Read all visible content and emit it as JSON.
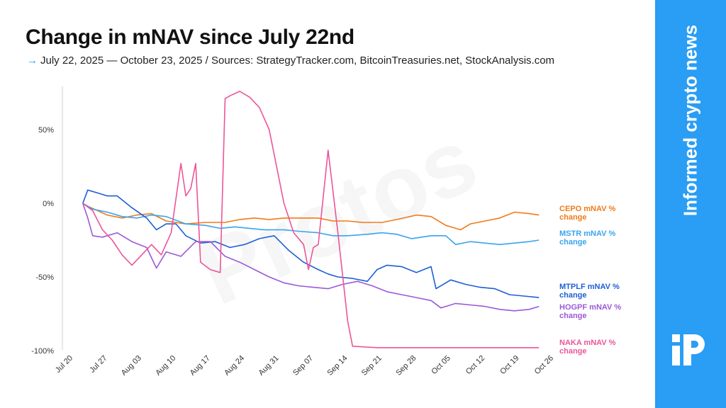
{
  "header": {
    "title": "Change in mNAV since July 22nd",
    "arrow": "→",
    "subtitle": "July 22, 2025 — October 23, 2025 / Sources: StrategyTracker.com, BitcoinTreasuries.net, StockAnalysis.com"
  },
  "brand": {
    "tagline": "Informed crypto news",
    "logo_icon": "protos-logo-icon",
    "watermark": "Protos",
    "accent": "#2a9df4"
  },
  "chart_data": {
    "type": "line",
    "title": "Change in mNAV since July 22nd",
    "xlabel": "",
    "ylabel": "",
    "x_ticks": [
      "Jul 20",
      "Jul 27",
      "Aug 03",
      "Aug 10",
      "Aug 17",
      "Aug 24",
      "Aug 31",
      "Sep 07",
      "Sep 14",
      "Sep 21",
      "Sep 28",
      "Oct 05",
      "Oct 12",
      "Oct 19",
      "Oct 26"
    ],
    "y_ticks": [
      {
        "value": 50,
        "label": "50%"
      },
      {
        "value": 0,
        "label": "0%"
      },
      {
        "value": -50,
        "label": "-50%"
      },
      {
        "value": -100,
        "label": "-100%"
      }
    ],
    "xlim": [
      "2025-07-20",
      "2025-10-26"
    ],
    "ylim": [
      -100,
      80
    ],
    "grid": false,
    "legend": "inline-right",
    "series": [
      {
        "name": "CEPO mNAV % change",
        "color": "#f07a19",
        "points": [
          [
            "2025-07-22",
            0
          ],
          [
            "2025-07-23",
            -2
          ],
          [
            "2025-07-25",
            -5
          ],
          [
            "2025-07-27",
            -8
          ],
          [
            "2025-07-30",
            -10
          ],
          [
            "2025-08-02",
            -8
          ],
          [
            "2025-08-05",
            -7
          ],
          [
            "2025-08-08",
            -12
          ],
          [
            "2025-08-12",
            -14
          ],
          [
            "2025-08-16",
            -13
          ],
          [
            "2025-08-20",
            -13
          ],
          [
            "2025-08-23",
            -11
          ],
          [
            "2025-08-26",
            -10
          ],
          [
            "2025-08-29",
            -11
          ],
          [
            "2025-09-01",
            -10
          ],
          [
            "2025-09-04",
            -10
          ],
          [
            "2025-09-08",
            -10
          ],
          [
            "2025-09-11",
            -12
          ],
          [
            "2025-09-14",
            -12
          ],
          [
            "2025-09-17",
            -13
          ],
          [
            "2025-09-21",
            -13
          ],
          [
            "2025-09-24",
            -11
          ],
          [
            "2025-09-28",
            -8
          ],
          [
            "2025-10-01",
            -9
          ],
          [
            "2025-10-04",
            -15
          ],
          [
            "2025-10-07",
            -18
          ],
          [
            "2025-10-09",
            -14
          ],
          [
            "2025-10-12",
            -12
          ],
          [
            "2025-10-15",
            -10
          ],
          [
            "2025-10-18",
            -6
          ],
          [
            "2025-10-21",
            -7
          ],
          [
            "2025-10-23",
            -8
          ]
        ]
      },
      {
        "name": "MSTR mNAV % change",
        "color": "#38a4ef",
        "points": [
          [
            "2025-07-22",
            0
          ],
          [
            "2025-07-24",
            -4
          ],
          [
            "2025-07-27",
            -6
          ],
          [
            "2025-07-30",
            -9
          ],
          [
            "2025-08-02",
            -10
          ],
          [
            "2025-08-05",
            -8
          ],
          [
            "2025-08-08",
            -9
          ],
          [
            "2025-08-12",
            -14
          ],
          [
            "2025-08-16",
            -15
          ],
          [
            "2025-08-19",
            -17
          ],
          [
            "2025-08-22",
            -16
          ],
          [
            "2025-08-25",
            -17
          ],
          [
            "2025-08-28",
            -18
          ],
          [
            "2025-09-01",
            -18
          ],
          [
            "2025-09-04",
            -19
          ],
          [
            "2025-09-08",
            -20
          ],
          [
            "2025-09-11",
            -22
          ],
          [
            "2025-09-14",
            -22
          ],
          [
            "2025-09-18",
            -21
          ],
          [
            "2025-09-21",
            -20
          ],
          [
            "2025-09-24",
            -21
          ],
          [
            "2025-09-27",
            -24
          ],
          [
            "2025-10-01",
            -22
          ],
          [
            "2025-10-04",
            -22
          ],
          [
            "2025-10-06",
            -28
          ],
          [
            "2025-10-09",
            -26
          ],
          [
            "2025-10-12",
            -27
          ],
          [
            "2025-10-15",
            -28
          ],
          [
            "2025-10-18",
            -27
          ],
          [
            "2025-10-21",
            -26
          ],
          [
            "2025-10-23",
            -25
          ]
        ]
      },
      {
        "name": "MTPLF mNAV % change",
        "color": "#1d5fd4",
        "points": [
          [
            "2025-07-22",
            0
          ],
          [
            "2025-07-23",
            9
          ],
          [
            "2025-07-25",
            7
          ],
          [
            "2025-07-27",
            5
          ],
          [
            "2025-07-29",
            5
          ],
          [
            "2025-08-01",
            -3
          ],
          [
            "2025-08-04",
            -10
          ],
          [
            "2025-08-06",
            -18
          ],
          [
            "2025-08-08",
            -14
          ],
          [
            "2025-08-10",
            -14
          ],
          [
            "2025-08-12",
            -22
          ],
          [
            "2025-08-15",
            -27
          ],
          [
            "2025-08-18",
            -26
          ],
          [
            "2025-08-21",
            -30
          ],
          [
            "2025-08-24",
            -28
          ],
          [
            "2025-08-27",
            -24
          ],
          [
            "2025-08-30",
            -22
          ],
          [
            "2025-09-02",
            -32
          ],
          [
            "2025-09-05",
            -40
          ],
          [
            "2025-09-08",
            -45
          ],
          [
            "2025-09-10",
            -48
          ],
          [
            "2025-09-12",
            -50
          ],
          [
            "2025-09-15",
            -51
          ],
          [
            "2025-09-18",
            -53
          ],
          [
            "2025-09-20",
            -45
          ],
          [
            "2025-09-22",
            -42
          ],
          [
            "2025-09-25",
            -43
          ],
          [
            "2025-09-28",
            -47
          ],
          [
            "2025-10-01",
            -43
          ],
          [
            "2025-10-02",
            -58
          ],
          [
            "2025-10-05",
            -52
          ],
          [
            "2025-10-08",
            -55
          ],
          [
            "2025-10-11",
            -57
          ],
          [
            "2025-10-14",
            -58
          ],
          [
            "2025-10-17",
            -62
          ],
          [
            "2025-10-20",
            -63
          ],
          [
            "2025-10-23",
            -64
          ]
        ]
      },
      {
        "name": "HOGPF mNAV % change",
        "color": "#9b59d9",
        "points": [
          [
            "2025-07-22",
            0
          ],
          [
            "2025-07-23",
            -10
          ],
          [
            "2025-07-24",
            -22
          ],
          [
            "2025-07-26",
            -23
          ],
          [
            "2025-07-29",
            -20
          ],
          [
            "2025-08-01",
            -26
          ],
          [
            "2025-08-04",
            -30
          ],
          [
            "2025-08-06",
            -44
          ],
          [
            "2025-08-08",
            -33
          ],
          [
            "2025-08-11",
            -36
          ],
          [
            "2025-08-14",
            -26
          ],
          [
            "2025-08-17",
            -26
          ],
          [
            "2025-08-20",
            -36
          ],
          [
            "2025-08-23",
            -40
          ],
          [
            "2025-08-26",
            -45
          ],
          [
            "2025-08-29",
            -50
          ],
          [
            "2025-09-01",
            -54
          ],
          [
            "2025-09-04",
            -56
          ],
          [
            "2025-09-07",
            -57
          ],
          [
            "2025-09-10",
            -58
          ],
          [
            "2025-09-13",
            -55
          ],
          [
            "2025-09-16",
            -53
          ],
          [
            "2025-09-19",
            -56
          ],
          [
            "2025-09-22",
            -60
          ],
          [
            "2025-09-25",
            -62
          ],
          [
            "2025-09-28",
            -64
          ],
          [
            "2025-10-01",
            -66
          ],
          [
            "2025-10-03",
            -71
          ],
          [
            "2025-10-06",
            -68
          ],
          [
            "2025-10-09",
            -69
          ],
          [
            "2025-10-12",
            -70
          ],
          [
            "2025-10-15",
            -72
          ],
          [
            "2025-10-18",
            -73
          ],
          [
            "2025-10-21",
            -72
          ],
          [
            "2025-10-23",
            -70
          ]
        ]
      },
      {
        "name": "NAKA mNAV % change",
        "color": "#ec5599",
        "points": [
          [
            "2025-07-22",
            0
          ],
          [
            "2025-07-24",
            -5
          ],
          [
            "2025-07-26",
            -18
          ],
          [
            "2025-07-28",
            -25
          ],
          [
            "2025-07-30",
            -35
          ],
          [
            "2025-08-01",
            -42
          ],
          [
            "2025-08-03",
            -35
          ],
          [
            "2025-08-05",
            -28
          ],
          [
            "2025-08-07",
            -35
          ],
          [
            "2025-08-09",
            -20
          ],
          [
            "2025-08-11",
            27
          ],
          [
            "2025-08-12",
            5
          ],
          [
            "2025-08-13",
            10
          ],
          [
            "2025-08-14",
            27
          ],
          [
            "2025-08-15",
            -40
          ],
          [
            "2025-08-17",
            -45
          ],
          [
            "2025-08-19",
            -47
          ],
          [
            "2025-08-20",
            71
          ],
          [
            "2025-08-21",
            73
          ],
          [
            "2025-08-23",
            76
          ],
          [
            "2025-08-25",
            72
          ],
          [
            "2025-08-27",
            65
          ],
          [
            "2025-08-29",
            50
          ],
          [
            "2025-09-01",
            0
          ],
          [
            "2025-09-03",
            -20
          ],
          [
            "2025-09-05",
            -28
          ],
          [
            "2025-09-06",
            -45
          ],
          [
            "2025-09-07",
            -30
          ],
          [
            "2025-09-08",
            -28
          ],
          [
            "2025-09-10",
            36
          ],
          [
            "2025-09-12",
            -20
          ],
          [
            "2025-09-14",
            -80
          ],
          [
            "2025-09-15",
            -97
          ],
          [
            "2025-09-20",
            -98
          ],
          [
            "2025-10-01",
            -98
          ],
          [
            "2025-10-23",
            -98
          ]
        ]
      }
    ]
  }
}
